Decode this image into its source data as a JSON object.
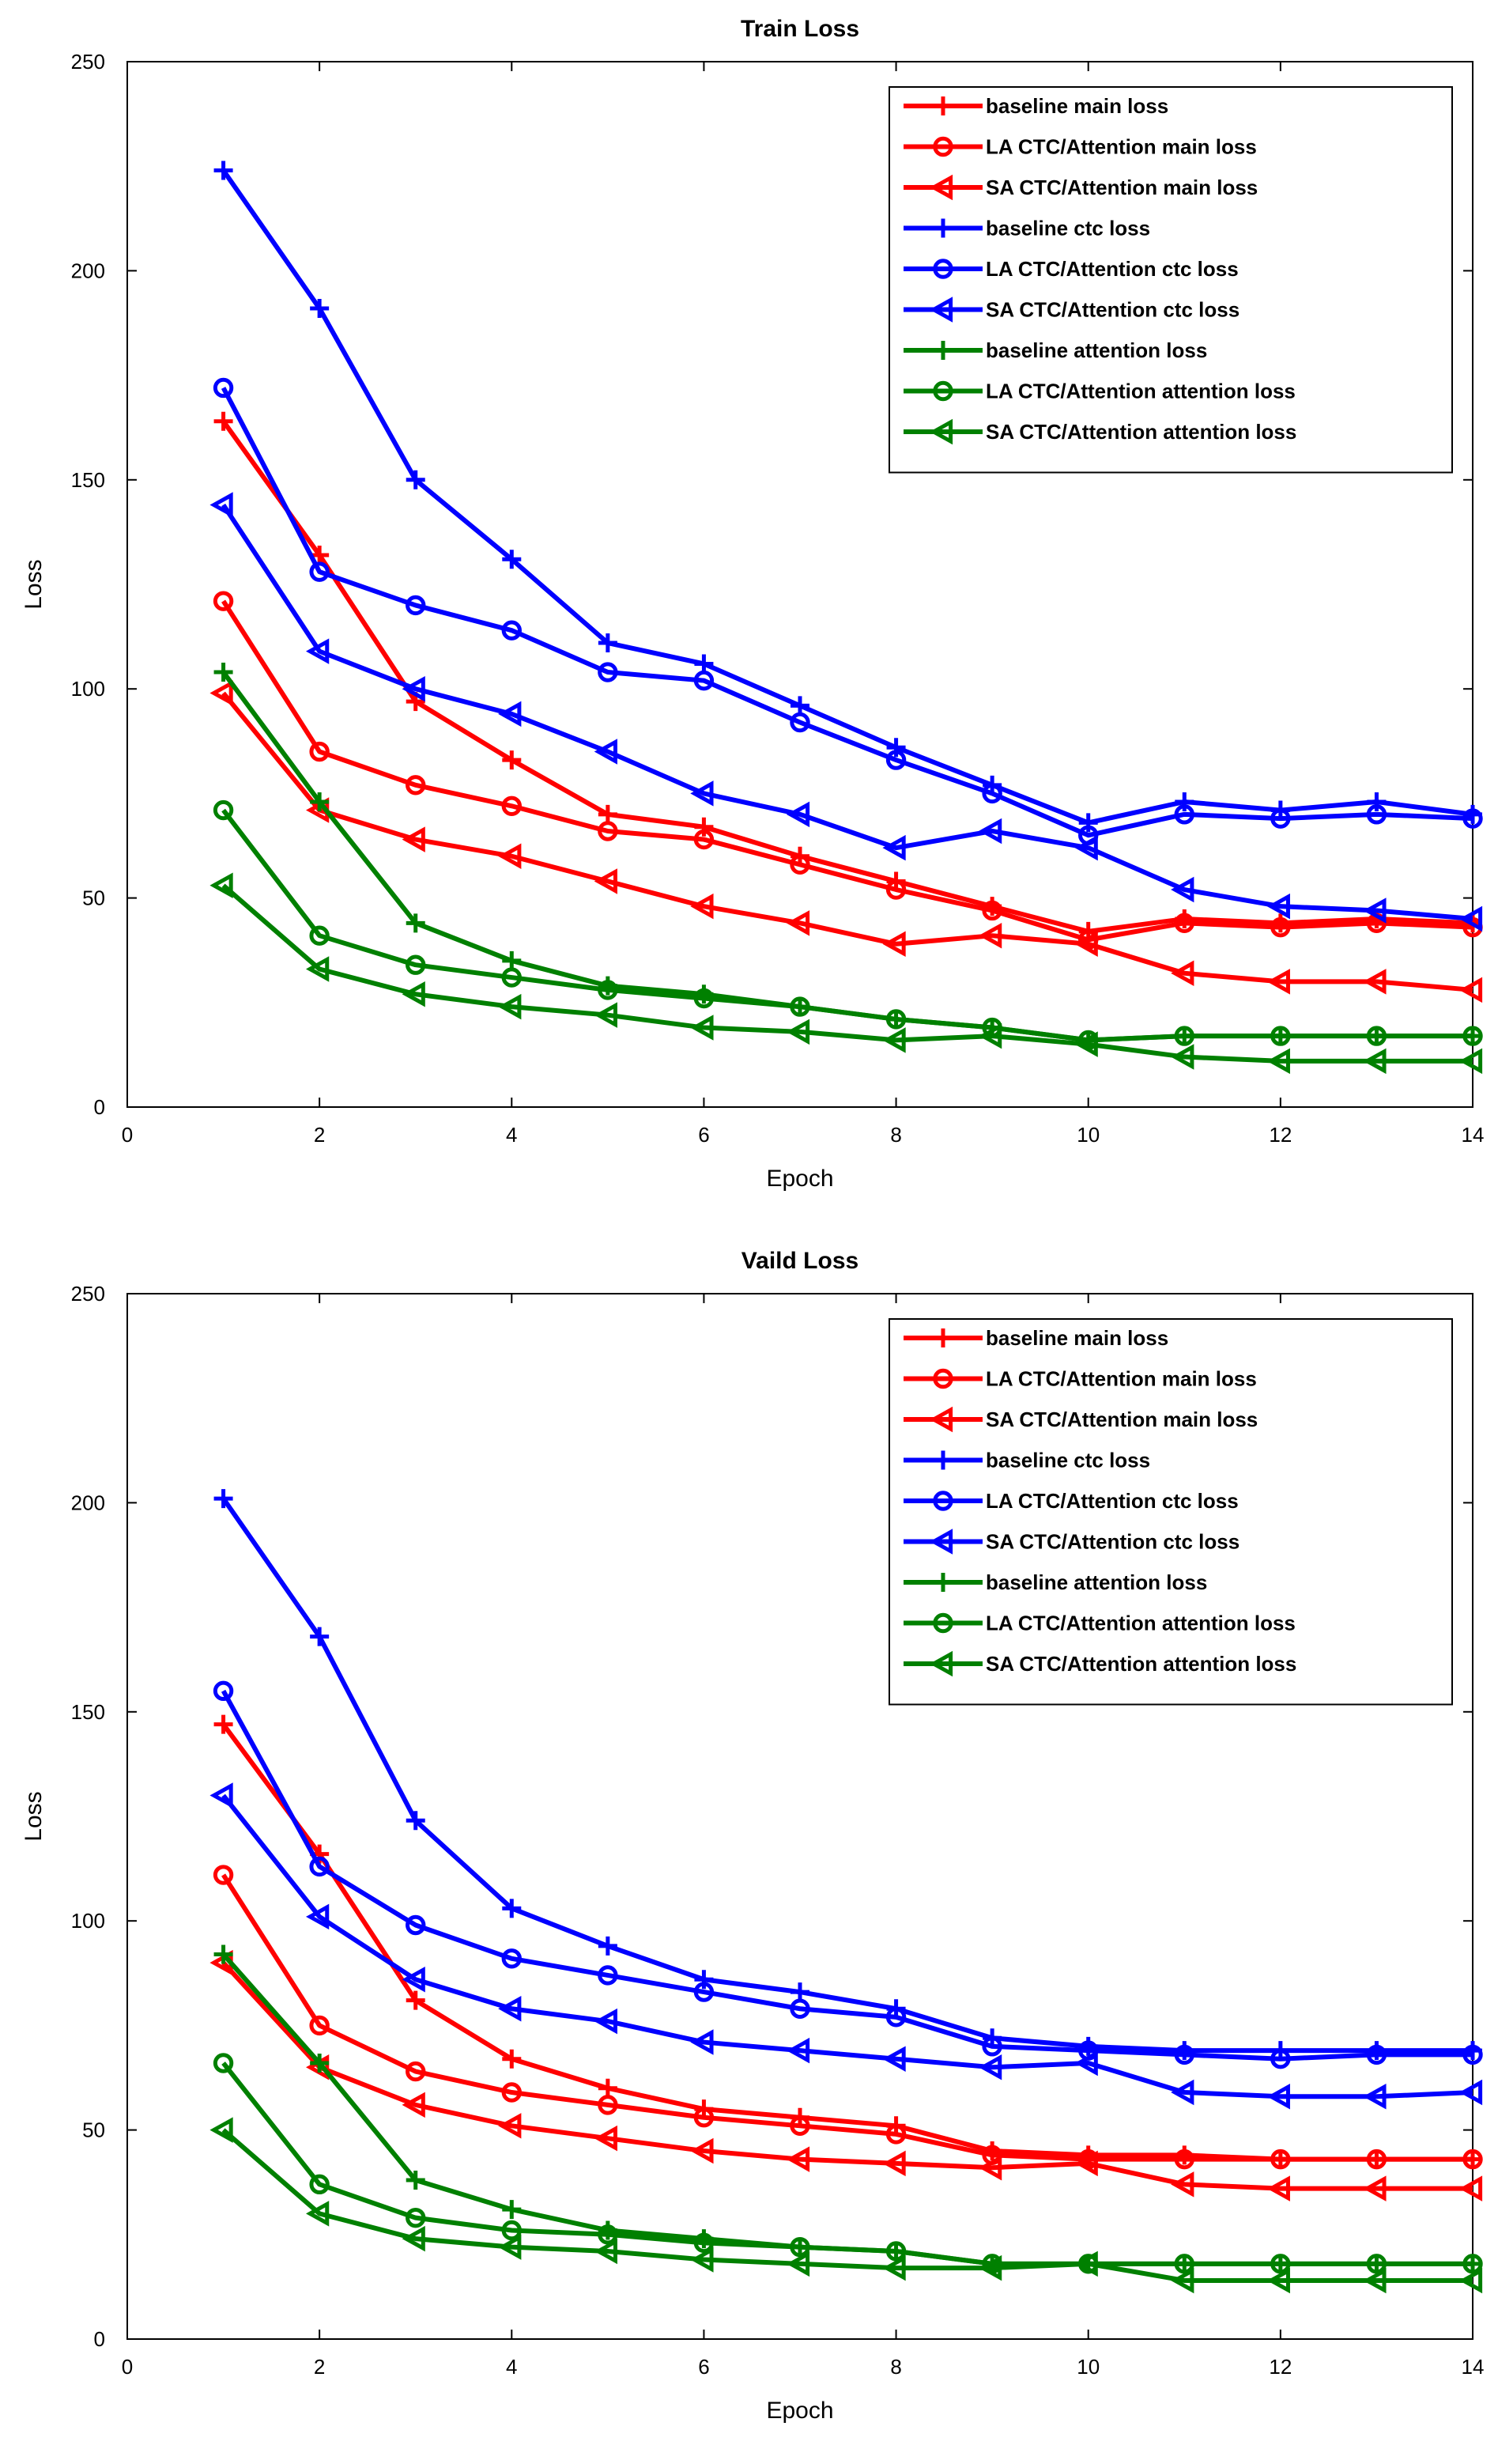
{
  "chart_data": [
    {
      "type": "line",
      "title": "Train Loss",
      "xlabel": "Epoch",
      "ylabel": "Loss",
      "xlim": [
        0,
        14
      ],
      "ylim": [
        0,
        250
      ],
      "xticks": [
        "0",
        "2",
        "4",
        "6",
        "8",
        "10",
        "12",
        "14"
      ],
      "yticks": [
        "0",
        "50",
        "100",
        "150",
        "200",
        "250"
      ],
      "grid": false,
      "legend_position": "top-right",
      "x": [
        1,
        2,
        3,
        4,
        5,
        6,
        7,
        8,
        9,
        10,
        11,
        12,
        13,
        14
      ],
      "series": [
        {
          "name": "baseline main loss",
          "color": "#ff0000",
          "marker": "plus",
          "values": [
            164,
            132,
            97,
            83,
            70,
            67,
            60,
            54,
            48,
            42,
            45,
            44,
            45,
            44
          ]
        },
        {
          "name": "LA CTC/Attention main loss",
          "color": "#ff0000",
          "marker": "circle",
          "values": [
            121,
            85,
            77,
            72,
            66,
            64,
            58,
            52,
            47,
            40,
            44,
            43,
            44,
            43
          ]
        },
        {
          "name": "SA CTC/Attention main loss",
          "color": "#ff0000",
          "marker": "triangle-left",
          "values": [
            99,
            71,
            64,
            60,
            54,
            48,
            44,
            39,
            41,
            39,
            32,
            30,
            30,
            28
          ]
        },
        {
          "name": "baseline ctc loss",
          "color": "#0000ff",
          "marker": "plus",
          "values": [
            224,
            191,
            150,
            131,
            111,
            106,
            96,
            86,
            77,
            68,
            73,
            71,
            73,
            70
          ]
        },
        {
          "name": "LA CTC/Attention ctc loss",
          "color": "#0000ff",
          "marker": "circle",
          "values": [
            172,
            128,
            120,
            114,
            104,
            102,
            92,
            83,
            75,
            65,
            70,
            69,
            70,
            69
          ]
        },
        {
          "name": "SA CTC/Attention ctc loss",
          "color": "#0000ff",
          "marker": "triangle-left",
          "values": [
            144,
            109,
            100,
            94,
            85,
            75,
            70,
            62,
            66,
            62,
            52,
            48,
            47,
            45
          ]
        },
        {
          "name": "baseline attention loss",
          "color": "#008000",
          "marker": "plus",
          "values": [
            104,
            73,
            44,
            35,
            29,
            27,
            24,
            21,
            19,
            16,
            17,
            17,
            17,
            17
          ]
        },
        {
          "name": "LA CTC/Attention attention loss",
          "color": "#008000",
          "marker": "circle",
          "values": [
            71,
            41,
            34,
            31,
            28,
            26,
            24,
            21,
            19,
            16,
            17,
            17,
            17,
            17
          ]
        },
        {
          "name": "SA CTC/Attention attention loss",
          "color": "#008000",
          "marker": "triangle-left",
          "values": [
            53,
            33,
            27,
            24,
            22,
            19,
            18,
            16,
            17,
            15,
            12,
            11,
            11,
            11
          ]
        }
      ]
    },
    {
      "type": "line",
      "title": "Vaild Loss",
      "xlabel": "Epoch",
      "ylabel": "Loss",
      "xlim": [
        0,
        14
      ],
      "ylim": [
        0,
        250
      ],
      "xticks": [
        "0",
        "2",
        "4",
        "6",
        "8",
        "10",
        "12",
        "14"
      ],
      "yticks": [
        "0",
        "50",
        "100",
        "150",
        "200",
        "250"
      ],
      "grid": false,
      "legend_position": "top-right",
      "x": [
        1,
        2,
        3,
        4,
        5,
        6,
        7,
        8,
        9,
        10,
        11,
        12,
        13,
        14
      ],
      "series": [
        {
          "name": "baseline main loss",
          "color": "#ff0000",
          "marker": "plus",
          "values": [
            147,
            116,
            81,
            67,
            60,
            55,
            53,
            51,
            45,
            44,
            44,
            43,
            43,
            43
          ]
        },
        {
          "name": "LA CTC/Attention main loss",
          "color": "#ff0000",
          "marker": "circle",
          "values": [
            111,
            75,
            64,
            59,
            56,
            53,
            51,
            49,
            44,
            43,
            43,
            43,
            43,
            43
          ]
        },
        {
          "name": "SA CTC/Attention main loss",
          "color": "#ff0000",
          "marker": "triangle-left",
          "values": [
            90,
            65,
            56,
            51,
            48,
            45,
            43,
            42,
            41,
            42,
            37,
            36,
            36,
            36
          ]
        },
        {
          "name": "baseline ctc loss",
          "color": "#0000ff",
          "marker": "plus",
          "values": [
            201,
            168,
            124,
            103,
            94,
            86,
            83,
            79,
            72,
            70,
            69,
            69,
            69,
            69
          ]
        },
        {
          "name": "LA CTC/Attention ctc loss",
          "color": "#0000ff",
          "marker": "circle",
          "values": [
            155,
            113,
            99,
            91,
            87,
            83,
            79,
            77,
            70,
            69,
            68,
            67,
            68,
            68
          ]
        },
        {
          "name": "SA CTC/Attention ctc loss",
          "color": "#0000ff",
          "marker": "triangle-left",
          "values": [
            130,
            101,
            86,
            79,
            76,
            71,
            69,
            67,
            65,
            66,
            59,
            58,
            58,
            59
          ]
        },
        {
          "name": "baseline attention loss",
          "color": "#008000",
          "marker": "plus",
          "values": [
            92,
            66,
            38,
            31,
            26,
            24,
            22,
            21,
            18,
            18,
            18,
            18,
            18,
            18
          ]
        },
        {
          "name": "LA CTC/Attention attention loss",
          "color": "#008000",
          "marker": "circle",
          "values": [
            66,
            37,
            29,
            26,
            25,
            23,
            22,
            21,
            18,
            18,
            18,
            18,
            18,
            18
          ]
        },
        {
          "name": "SA CTC/Attention attention loss",
          "color": "#008000",
          "marker": "triangle-left",
          "values": [
            50,
            30,
            24,
            22,
            21,
            19,
            18,
            17,
            17,
            18,
            14,
            14,
            14,
            14
          ]
        }
      ]
    }
  ]
}
